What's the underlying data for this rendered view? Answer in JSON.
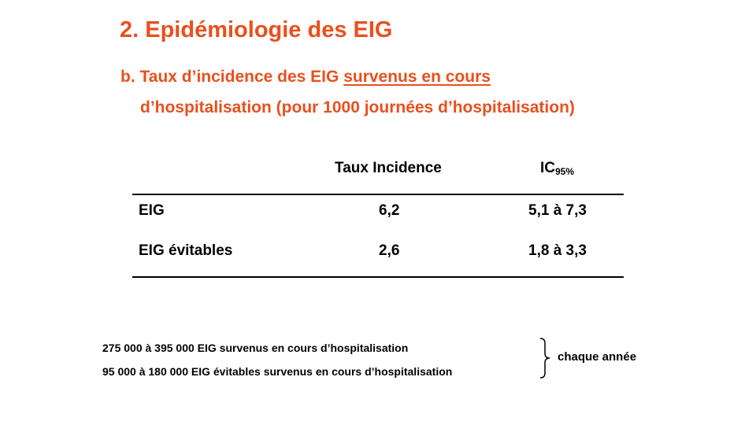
{
  "slide": {
    "title": "2. Epidémiologie des EIG",
    "subtitle": {
      "line1_prefix": "b. Taux d’incidence des EIG ",
      "line1_underlined": "survenus en cours",
      "line2": "d’hospitalisation (pour 1000 journées d’hospitalisation)"
    }
  },
  "table": {
    "headers": {
      "rate": "Taux Incidence",
      "ci_main": "IC",
      "ci_sub": "95%"
    },
    "rows": [
      {
        "label": "EIG",
        "rate": "6,2",
        "ci": "5,1 à 7,3"
      },
      {
        "label": "EIG évitables",
        "rate": "2,6",
        "ci": "1,8 à 3,3"
      }
    ]
  },
  "notes": {
    "line1": "275 000 à 395 000 EIG survenus  en cours d’hospitalisation",
    "line2": "95 000 à 180 000 EIG évitables  survenus en cours d’hospitalisation",
    "brace_label": "chaque année"
  },
  "colors": {
    "accent": "#E8501E",
    "text": "#000000",
    "background": "#FFFFFF"
  }
}
